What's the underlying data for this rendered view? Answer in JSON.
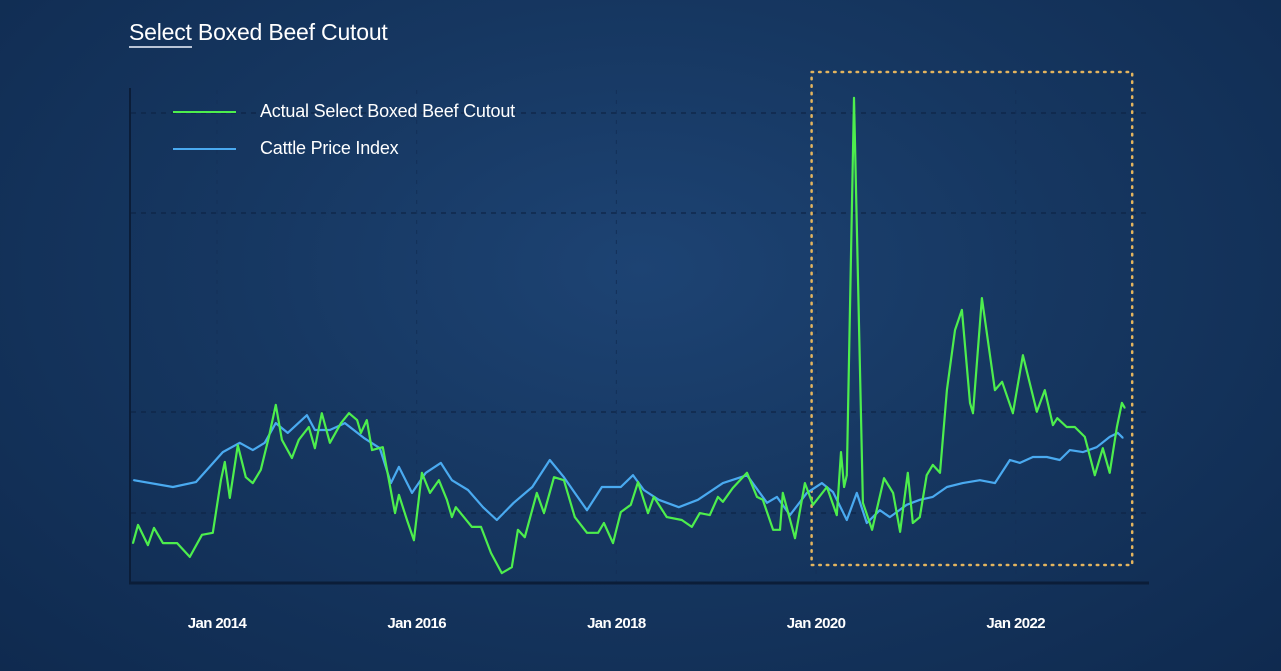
{
  "chart_data": {
    "type": "line",
    "title_prefix": "Select",
    "title_rest": " Boxed Beef Cutout",
    "xlabel": "",
    "ylabel": "",
    "x_ticks": [
      {
        "date": "2014-01-01",
        "label": "Jan 2014"
      },
      {
        "date": "2016-01-01",
        "label": "Jan 2016"
      },
      {
        "date": "2018-01-01",
        "label": "Jan 2018"
      },
      {
        "date": "2020-01-01",
        "label": "Jan 2020"
      },
      {
        "date": "2022-01-01",
        "label": "Jan 2022"
      }
    ],
    "y_tick_labels": "none",
    "ylim": [
      0,
      100
    ],
    "grid": "dashed, faint",
    "legend": "top-left",
    "highlight_region": {
      "from": "2019-12-15",
      "to": "2023-03-01",
      "style": "dotted",
      "color": "#e3b45e"
    },
    "series": [
      {
        "name": "Actual Select Boxed Beef Cutout",
        "color": "#4dee4d",
        "points": [
          [
            "2013-02-28",
            7.9
          ],
          [
            "2013-03-16",
            11.6
          ],
          [
            "2013-04-22",
            7.5
          ],
          [
            "2013-05-14",
            11.0
          ],
          [
            "2013-06-16",
            7.9
          ],
          [
            "2013-08-07",
            7.9
          ],
          [
            "2013-09-23",
            5.1
          ],
          [
            "2013-11-07",
            9.6
          ],
          [
            "2013-12-16",
            10.0
          ],
          [
            "2014-01-15",
            20.7
          ],
          [
            "2014-01-29",
            24.4
          ],
          [
            "2014-02-17",
            17.1
          ],
          [
            "2014-03-16",
            27.8
          ],
          [
            "2014-04-15",
            21.3
          ],
          [
            "2014-05-10",
            20.1
          ],
          [
            "2014-06-09",
            22.8
          ],
          [
            "2014-07-08",
            29.5
          ],
          [
            "2014-08-03",
            36.0
          ],
          [
            "2014-08-25",
            28.9
          ],
          [
            "2014-10-01",
            25.2
          ],
          [
            "2014-10-26",
            28.9
          ],
          [
            "2014-12-02",
            31.5
          ],
          [
            "2014-12-24",
            27.2
          ],
          [
            "2015-01-19",
            34.3
          ],
          [
            "2015-02-18",
            28.3
          ],
          [
            "2015-03-28",
            32.3
          ],
          [
            "2015-04-27",
            34.3
          ],
          [
            "2015-05-26",
            32.9
          ],
          [
            "2015-06-10",
            30.3
          ],
          [
            "2015-07-01",
            32.9
          ],
          [
            "2015-07-20",
            26.8
          ],
          [
            "2015-08-29",
            27.4
          ],
          [
            "2015-10-13",
            14.0
          ],
          [
            "2015-10-27",
            17.7
          ],
          [
            "2015-11-26",
            12.6
          ],
          [
            "2015-12-21",
            8.5
          ],
          [
            "2016-01-20",
            22.2
          ],
          [
            "2016-02-19",
            18.1
          ],
          [
            "2016-03-21",
            20.7
          ],
          [
            "2016-04-20",
            16.7
          ],
          [
            "2016-05-08",
            13.2
          ],
          [
            "2016-05-22",
            15.2
          ],
          [
            "2016-07-20",
            11.2
          ],
          [
            "2016-08-23",
            11.2
          ],
          [
            "2016-09-29",
            5.9
          ],
          [
            "2016-11-08",
            1.8
          ],
          [
            "2016-12-14",
            3.0
          ],
          [
            "2017-01-06",
            10.6
          ],
          [
            "2017-02-01",
            9.1
          ],
          [
            "2017-03-14",
            18.1
          ],
          [
            "2017-04-10",
            14.0
          ],
          [
            "2017-05-16",
            21.3
          ],
          [
            "2017-06-22",
            20.7
          ],
          [
            "2017-08-01",
            13.2
          ],
          [
            "2017-09-15",
            10.0
          ],
          [
            "2017-10-25",
            10.0
          ],
          [
            "2017-11-16",
            12.0
          ],
          [
            "2017-12-19",
            7.9
          ],
          [
            "2018-01-17",
            14.2
          ],
          [
            "2018-02-23",
            15.7
          ],
          [
            "2018-03-19",
            20.3
          ],
          [
            "2018-04-25",
            14.0
          ],
          [
            "2018-05-16",
            17.3
          ],
          [
            "2018-07-03",
            13.2
          ],
          [
            "2018-08-27",
            12.6
          ],
          [
            "2018-10-03",
            11.2
          ],
          [
            "2018-11-02",
            14.0
          ],
          [
            "2018-12-08",
            13.6
          ],
          [
            "2019-01-07",
            17.3
          ],
          [
            "2019-01-25",
            16.3
          ],
          [
            "2019-03-01",
            19.1
          ],
          [
            "2019-04-22",
            22.2
          ],
          [
            "2019-05-28",
            17.3
          ],
          [
            "2019-06-19",
            16.7
          ],
          [
            "2019-07-26",
            10.6
          ],
          [
            "2019-08-21",
            10.6
          ],
          [
            "2019-09-01",
            18.1
          ],
          [
            "2019-10-15",
            8.9
          ],
          [
            "2019-11-21",
            20.1
          ],
          [
            "2019-12-20",
            15.7
          ],
          [
            "2020-02-10",
            19.3
          ],
          [
            "2020-03-16",
            13.6
          ],
          [
            "2020-04-01",
            26.4
          ],
          [
            "2020-04-12",
            19.3
          ],
          [
            "2020-04-22",
            21.7
          ],
          [
            "2020-05-18",
            98.4
          ],
          [
            "2020-06-20",
            16.1
          ],
          [
            "2020-07-23",
            10.6
          ],
          [
            "2020-09-06",
            21.1
          ],
          [
            "2020-10-09",
            18.1
          ],
          [
            "2020-11-04",
            10.2
          ],
          [
            "2020-12-02",
            22.2
          ],
          [
            "2020-12-20",
            12.0
          ],
          [
            "2021-01-15",
            13.2
          ],
          [
            "2021-02-10",
            21.7
          ],
          [
            "2021-03-02",
            23.8
          ],
          [
            "2021-03-28",
            22.2
          ],
          [
            "2021-04-23",
            39.0
          ],
          [
            "2021-05-22",
            51.2
          ],
          [
            "2021-06-17",
            55.3
          ],
          [
            "2021-07-16",
            36.4
          ],
          [
            "2021-07-27",
            34.3
          ],
          [
            "2021-08-29",
            57.7
          ],
          [
            "2021-10-16",
            39.0
          ],
          [
            "2021-11-12",
            40.7
          ],
          [
            "2021-12-21",
            34.3
          ],
          [
            "2022-01-27",
            46.1
          ],
          [
            "2022-03-17",
            34.6
          ],
          [
            "2022-04-16",
            39.0
          ],
          [
            "2022-05-15",
            31.9
          ],
          [
            "2022-06-01",
            33.3
          ],
          [
            "2022-07-05",
            31.5
          ],
          [
            "2022-08-04",
            31.5
          ],
          [
            "2022-09-10",
            29.5
          ],
          [
            "2022-10-16",
            21.7
          ],
          [
            "2022-11-15",
            27.2
          ],
          [
            "2022-12-10",
            22.2
          ],
          [
            "2023-01-06",
            31.5
          ],
          [
            "2023-01-24",
            36.4
          ],
          [
            "2023-02-04",
            35.4
          ]
        ]
      },
      {
        "name": "Cattle Price Index",
        "color": "#4aaaf0",
        "points": [
          [
            "2013-03-01",
            20.7
          ],
          [
            "2013-07-22",
            19.3
          ],
          [
            "2013-10-15",
            20.3
          ],
          [
            "2014-01-22",
            26.4
          ],
          [
            "2014-03-23",
            28.3
          ],
          [
            "2014-05-10",
            26.8
          ],
          [
            "2014-06-23",
            28.3
          ],
          [
            "2014-08-03",
            32.3
          ],
          [
            "2014-09-16",
            30.3
          ],
          [
            "2014-11-25",
            33.9
          ],
          [
            "2014-12-24",
            30.9
          ],
          [
            "2015-02-18",
            30.9
          ],
          [
            "2015-04-12",
            32.3
          ],
          [
            "2015-06-20",
            29.3
          ],
          [
            "2015-08-18",
            27.2
          ],
          [
            "2015-09-28",
            20.1
          ],
          [
            "2015-10-27",
            23.4
          ],
          [
            "2015-12-14",
            18.1
          ],
          [
            "2016-02-04",
            22.2
          ],
          [
            "2016-03-28",
            24.2
          ],
          [
            "2016-05-08",
            20.7
          ],
          [
            "2016-07-06",
            18.7
          ],
          [
            "2016-08-30",
            15.2
          ],
          [
            "2016-10-20",
            12.6
          ],
          [
            "2016-12-21",
            16.1
          ],
          [
            "2017-02-28",
            19.3
          ],
          [
            "2017-05-01",
            24.8
          ],
          [
            "2017-06-22",
            21.3
          ],
          [
            "2017-08-01",
            18.1
          ],
          [
            "2017-09-15",
            14.6
          ],
          [
            "2017-11-09",
            19.3
          ],
          [
            "2018-01-17",
            19.3
          ],
          [
            "2018-03-01",
            21.7
          ],
          [
            "2018-04-10",
            18.7
          ],
          [
            "2018-06-04",
            16.7
          ],
          [
            "2018-08-16",
            15.2
          ],
          [
            "2018-10-25",
            16.7
          ],
          [
            "2019-01-25",
            20.1
          ],
          [
            "2019-04-22",
            21.7
          ],
          [
            "2019-07-04",
            16.1
          ],
          [
            "2019-08-10",
            17.3
          ],
          [
            "2019-09-27",
            13.6
          ],
          [
            "2019-11-28",
            18.1
          ],
          [
            "2020-01-22",
            20.1
          ],
          [
            "2020-03-02",
            18.3
          ],
          [
            "2020-04-22",
            12.6
          ],
          [
            "2020-05-28",
            18.1
          ],
          [
            "2020-07-04",
            12.0
          ],
          [
            "2020-08-21",
            14.6
          ],
          [
            "2020-09-27",
            13.2
          ],
          [
            "2020-11-28",
            15.7
          ],
          [
            "2021-01-15",
            16.7
          ],
          [
            "2021-03-02",
            17.3
          ],
          [
            "2021-04-23",
            19.3
          ],
          [
            "2021-06-20",
            20.1
          ],
          [
            "2021-08-22",
            20.7
          ],
          [
            "2021-10-16",
            20.1
          ],
          [
            "2021-12-10",
            24.8
          ],
          [
            "2022-01-16",
            24.2
          ],
          [
            "2022-03-03",
            25.4
          ],
          [
            "2022-04-23",
            25.4
          ],
          [
            "2022-06-10",
            24.8
          ],
          [
            "2022-07-16",
            26.8
          ],
          [
            "2022-09-03",
            26.4
          ],
          [
            "2022-10-23",
            27.4
          ],
          [
            "2022-12-10",
            29.5
          ],
          [
            "2023-01-09",
            30.3
          ],
          [
            "2023-01-27",
            29.3
          ]
        ]
      }
    ]
  }
}
